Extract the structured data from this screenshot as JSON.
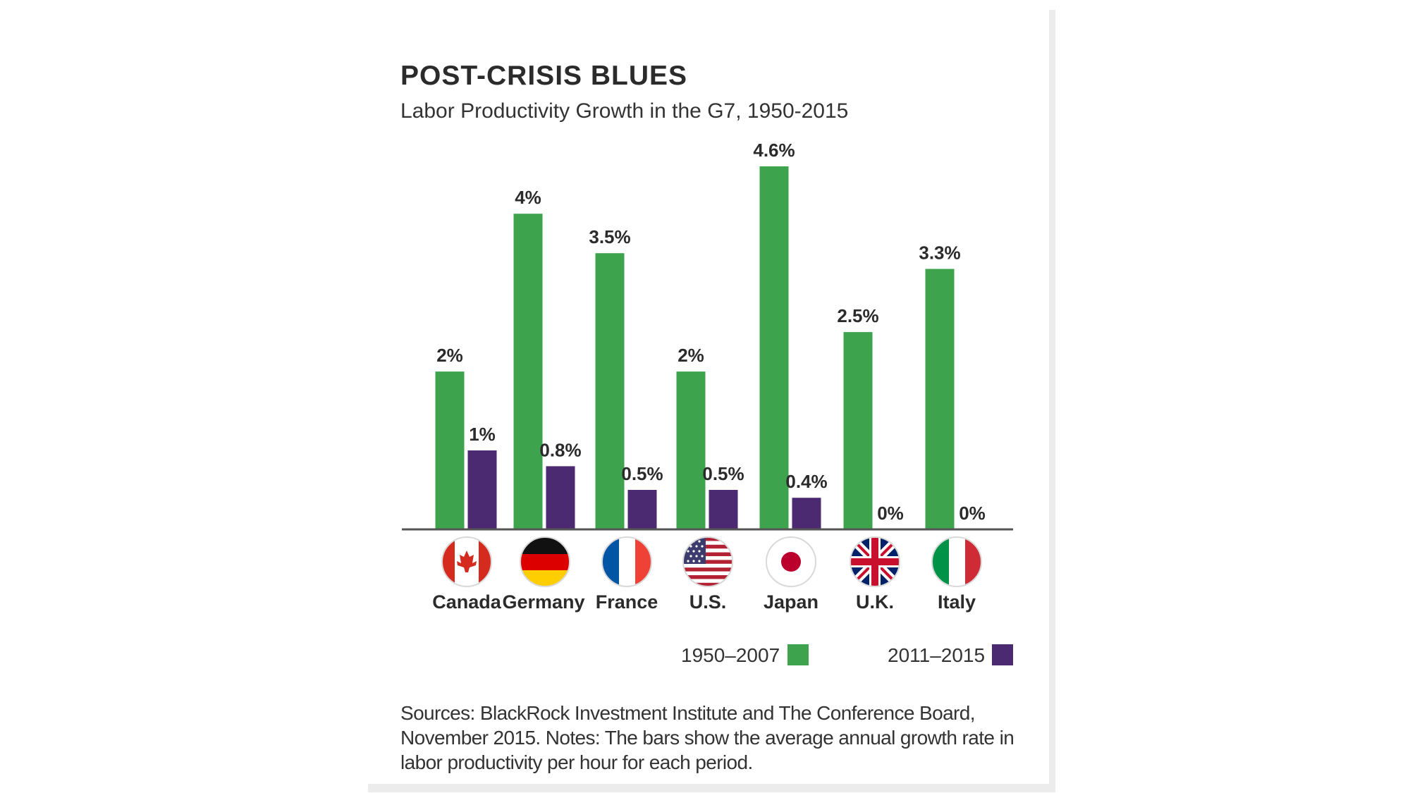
{
  "chart_data": {
    "type": "bar",
    "title": "POST-CRISIS BLUES",
    "subtitle": "Labor Productivity Growth in the G7, 1950-2015",
    "categories": [
      "Canada",
      "Germany",
      "France",
      "U.S.",
      "Japan",
      "U.K.",
      "Italy"
    ],
    "category_icons": [
      "canada-flag-icon",
      "germany-flag-icon",
      "france-flag-icon",
      "us-flag-icon",
      "japan-flag-icon",
      "uk-flag-icon",
      "italy-flag-icon"
    ],
    "series": [
      {
        "name": "1950–2007",
        "color": "#3da44d",
        "values": [
          2,
          4,
          3.5,
          2,
          4.6,
          2.5,
          3.3
        ],
        "labels": [
          "2%",
          "4%",
          "3.5%",
          "2%",
          "4.6%",
          "2.5%",
          "3.3%"
        ]
      },
      {
        "name": "2011–2015",
        "color": "#4b2a72",
        "values": [
          1,
          0.8,
          0.5,
          0.5,
          0.4,
          0,
          0
        ],
        "labels": [
          "1%",
          "0.8%",
          "0.5%",
          "0.5%",
          "0.4%",
          "0%",
          "0%"
        ]
      }
    ],
    "xlabel": "",
    "ylabel": "",
    "ylim": [
      0,
      4.6
    ],
    "grid": false,
    "legend_position": "bottom-right",
    "source_note": "Sources: BlackRock Investment Institute and The Conference Board, November 2015. Notes: The bars show the average annual growth rate in labor productivity per hour for each period."
  }
}
